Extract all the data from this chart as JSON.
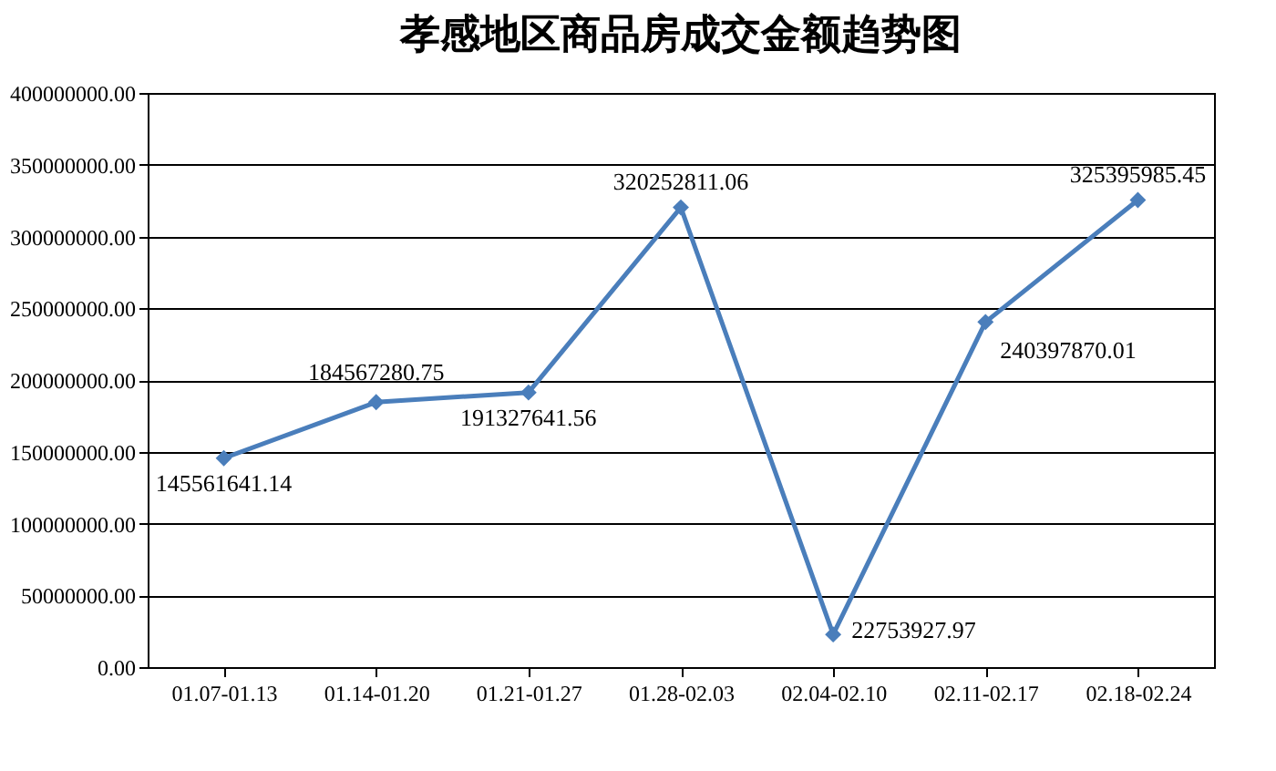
{
  "chart_data": {
    "type": "line",
    "title": "孝感地区商品房成交金额趋势图",
    "categories": [
      "01.07-01.13",
      "01.14-01.20",
      "01.21-01.27",
      "01.28-02.03",
      "02.04-02.10",
      "02.11-02.17",
      "02.18-02.24"
    ],
    "series": [
      {
        "color": "#4a7ebb",
        "values": [
          145561641.14,
          184567280.75,
          191327641.56,
          320252811.06,
          22753927.97,
          240397870.01,
          325395985.45
        ]
      }
    ],
    "ylim": [
      0,
      400000000
    ],
    "yticks": [
      {
        "value": 0,
        "label": "0.00"
      },
      {
        "value": 50000000,
        "label": "50000000.00"
      },
      {
        "value": 100000000,
        "label": "100000000.00"
      },
      {
        "value": 150000000,
        "label": "150000000.00"
      },
      {
        "value": 200000000,
        "label": "200000000.00"
      },
      {
        "value": 250000000,
        "label": "250000000.00"
      },
      {
        "value": 300000000,
        "label": "300000000.00"
      },
      {
        "value": 350000000,
        "label": "350000000.00"
      },
      {
        "value": 400000000,
        "label": "400000000.00"
      }
    ],
    "grid": "y",
    "marker": "diamond",
    "line_style": "solid",
    "data_labels": true
  }
}
